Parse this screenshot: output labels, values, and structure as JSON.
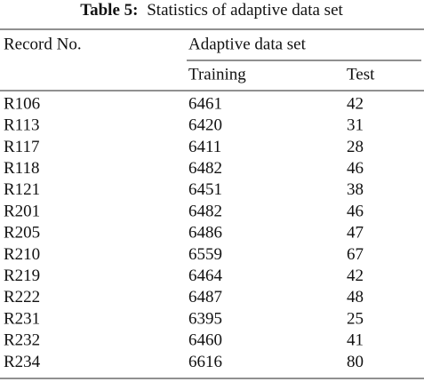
{
  "caption": {
    "label": "Table 5:",
    "text": "Statistics of adaptive data set"
  },
  "table": {
    "header": {
      "record": "Record No.",
      "group": "Adaptive data set",
      "training": "Training",
      "test": "Test"
    },
    "rows": [
      [
        "R106",
        6461,
        42
      ],
      [
        "R113",
        6420,
        31
      ],
      [
        "R117",
        6411,
        28
      ],
      [
        "R118",
        6482,
        46
      ],
      [
        "R121",
        6451,
        38
      ],
      [
        "R201",
        6482,
        46
      ],
      [
        "R205",
        6486,
        47
      ],
      [
        "R210",
        6559,
        67
      ],
      [
        "R219",
        6464,
        42
      ],
      [
        "R222",
        6487,
        48
      ],
      [
        "R231",
        6395,
        25
      ],
      [
        "R232",
        6460,
        41
      ],
      [
        "R234",
        6616,
        80
      ]
    ]
  }
}
